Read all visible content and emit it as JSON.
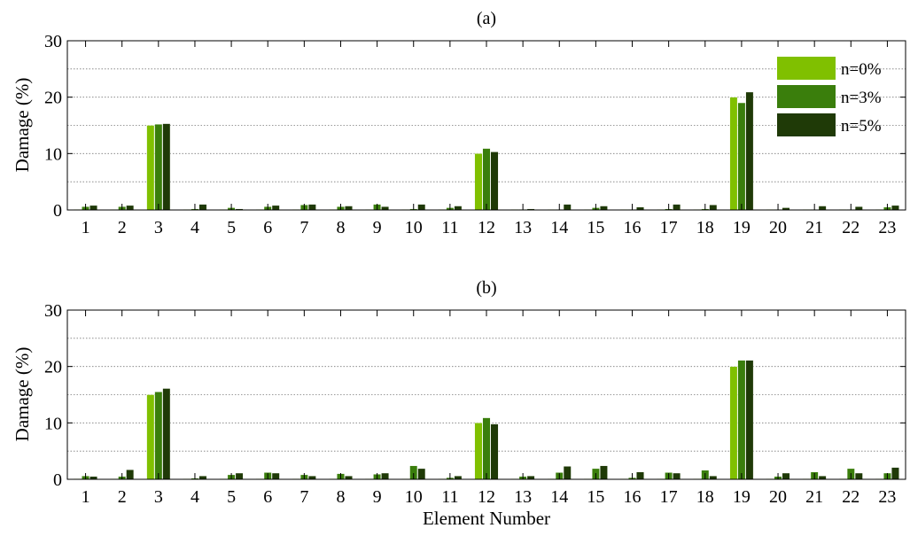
{
  "chart_data": [
    {
      "type": "bar",
      "title": "(a)",
      "ylabel": "Damage (%)",
      "xlabel": "",
      "ylim": [
        0,
        30
      ],
      "yticks": [
        0,
        10,
        20,
        30
      ],
      "grid": true,
      "legend_position": "top-right",
      "categories": [
        "1",
        "2",
        "3",
        "4",
        "5",
        "6",
        "7",
        "8",
        "9",
        "10",
        "11",
        "12",
        "13",
        "14",
        "15",
        "16",
        "17",
        "18",
        "19",
        "20",
        "21",
        "22",
        "23"
      ],
      "series": [
        {
          "name": "n=0%",
          "color": "#80c000",
          "values": [
            0.1,
            0.1,
            15.0,
            0.1,
            0.1,
            0.1,
            0.1,
            0.1,
            0.1,
            0.1,
            0.1,
            10.0,
            0.1,
            0.1,
            0.1,
            0.1,
            0.1,
            0.1,
            20.0,
            0.1,
            0.1,
            0.1,
            0.1
          ]
        },
        {
          "name": "n=3%",
          "color": "#3a7e0c",
          "values": [
            0.6,
            0.6,
            15.2,
            0.2,
            0.4,
            0.6,
            0.9,
            0.6,
            1.0,
            0.2,
            0.4,
            10.9,
            0.1,
            0.1,
            0.4,
            0.1,
            0.2,
            0.2,
            19.0,
            0.1,
            0.1,
            0.1,
            0.5
          ]
        },
        {
          "name": "n=5%",
          "color": "#1f3a07",
          "values": [
            0.8,
            0.8,
            15.3,
            1.0,
            0.2,
            0.8,
            1.0,
            0.7,
            0.6,
            1.0,
            0.7,
            10.3,
            0.2,
            1.0,
            0.7,
            0.5,
            1.0,
            0.9,
            20.9,
            0.4,
            0.7,
            0.6,
            0.8
          ]
        }
      ]
    },
    {
      "type": "bar",
      "title": "(b)",
      "ylabel": "Damage (%)",
      "xlabel": "Element Number",
      "ylim": [
        0,
        30
      ],
      "yticks": [
        0,
        10,
        20,
        30
      ],
      "grid": true,
      "categories": [
        "1",
        "2",
        "3",
        "4",
        "5",
        "6",
        "7",
        "8",
        "9",
        "10",
        "11",
        "12",
        "13",
        "14",
        "15",
        "16",
        "17",
        "18",
        "19",
        "20",
        "21",
        "22",
        "23"
      ],
      "series": [
        {
          "name": "n=0%",
          "color": "#80c000",
          "values": [
            0.1,
            0.1,
            15.0,
            0.1,
            0.1,
            0.1,
            0.1,
            0.1,
            0.1,
            0.1,
            0.1,
            10.0,
            0.1,
            0.1,
            0.1,
            0.1,
            0.1,
            0.1,
            20.0,
            0.1,
            0.1,
            0.1,
            0.1
          ]
        },
        {
          "name": "n=3%",
          "color": "#3a7e0c",
          "values": [
            0.6,
            0.5,
            15.5,
            0.2,
            0.8,
            1.2,
            0.8,
            1.0,
            0.9,
            2.4,
            0.3,
            10.9,
            0.5,
            1.2,
            1.9,
            0.3,
            1.2,
            1.6,
            21.1,
            0.5,
            1.3,
            1.9,
            1.1
          ]
        },
        {
          "name": "n=5%",
          "color": "#1f3a07",
          "values": [
            0.5,
            1.7,
            16.1,
            0.6,
            1.1,
            1.1,
            0.6,
            0.6,
            1.1,
            1.9,
            0.6,
            9.8,
            0.6,
            2.3,
            2.4,
            1.3,
            1.1,
            0.6,
            21.1,
            1.1,
            0.6,
            1.1,
            2.1
          ]
        }
      ]
    }
  ]
}
